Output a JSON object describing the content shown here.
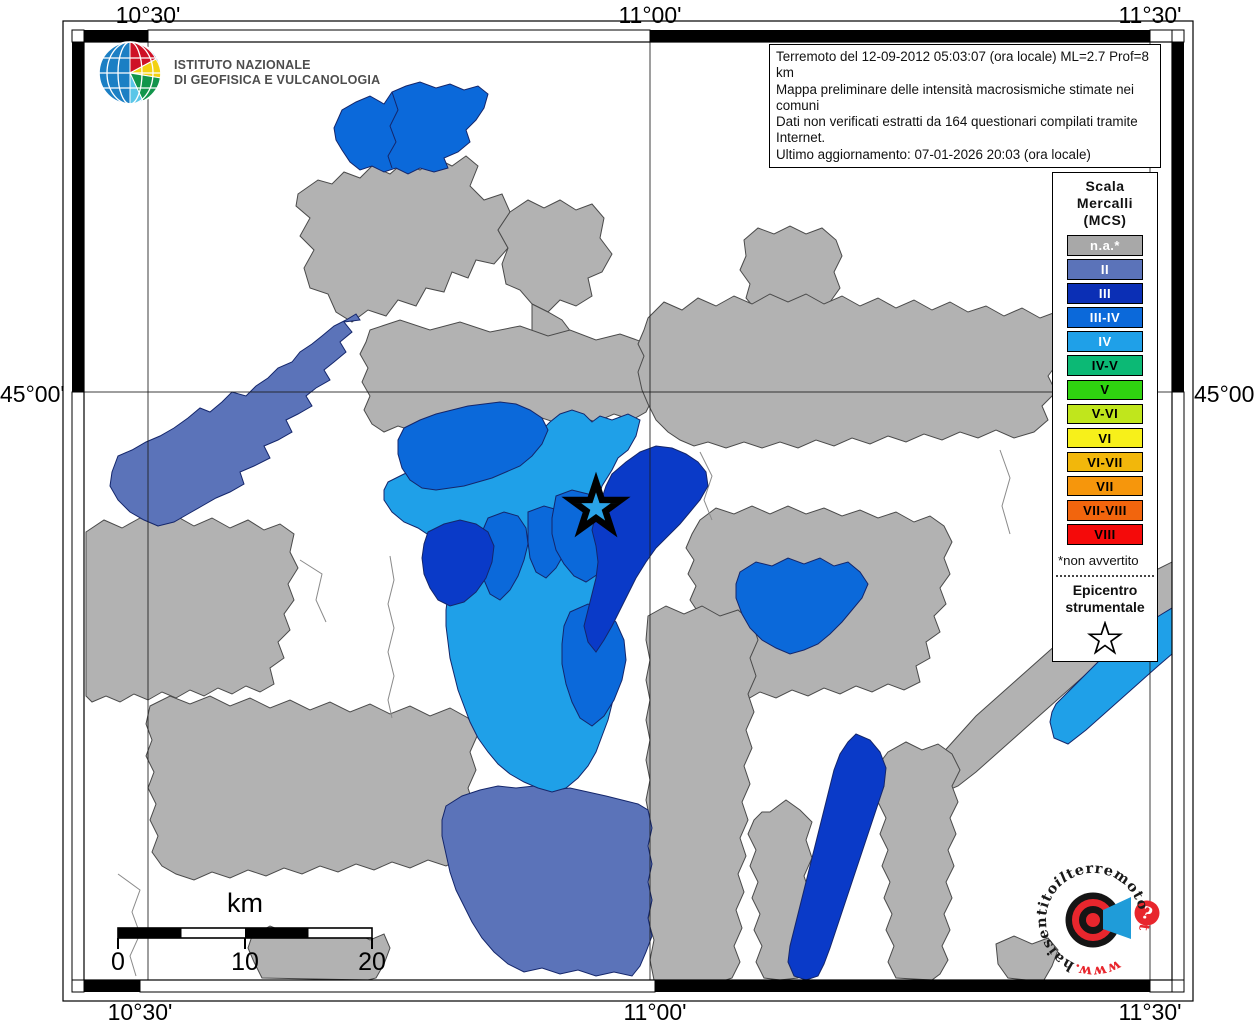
{
  "coordinates": {
    "top": [
      {
        "text": "10°30'"
      },
      {
        "text": "11°00'"
      },
      {
        "text": "11°30'"
      }
    ],
    "bottom": [
      {
        "text": "10°30'"
      },
      {
        "text": "11°00'"
      },
      {
        "text": "11°30'"
      }
    ],
    "left": "45°00'",
    "right": "45°00'"
  },
  "ingv": {
    "name_line1": "ISTITUTO NAZIONALE",
    "name_line2": "DI GEOFISICA E VULCANOLOGIA"
  },
  "info_box": {
    "lines": [
      "Terremoto del 12-09-2012 05:03:07 (ora locale) ML=2.7 Prof=8 km",
      "Mappa preliminare delle intensità macrosismiche stimate nei comuni",
      "Dati non verificati estratti da 164 questionari compilati tramite Internet.",
      "Ultimo aggiornamento: 07-01-2026 20:03 (ora locale)"
    ]
  },
  "legend": {
    "title_lines": [
      "Scala",
      "Mercalli",
      "(MCS)"
    ],
    "items": [
      {
        "label": "n.a.*",
        "color": "#A8A8A8",
        "text": "#ffffff"
      },
      {
        "label": "II",
        "color": "#5B73B9",
        "text": "#ffffff"
      },
      {
        "label": "III",
        "color": "#0B2FB5",
        "text": "#ffffff"
      },
      {
        "label": "III-IV",
        "color": "#0B69DA",
        "text": "#ffffff"
      },
      {
        "label": "IV",
        "color": "#1FA0E8",
        "text": "#ffffff"
      },
      {
        "label": "IV-V",
        "color": "#0CB975",
        "text": "#000000"
      },
      {
        "label": "V",
        "color": "#2FD310",
        "text": "#000000"
      },
      {
        "label": "V-VI",
        "color": "#C0E61C",
        "text": "#000000"
      },
      {
        "label": "VI",
        "color": "#F7F01A",
        "text": "#000000"
      },
      {
        "label": "VI-VII",
        "color": "#F2B70B",
        "text": "#000000"
      },
      {
        "label": "VII",
        "color": "#F6960C",
        "text": "#000000"
      },
      {
        "label": "VII-VIII",
        "color": "#F2650D",
        "text": "#000000"
      },
      {
        "label": "VIII",
        "color": "#F50A0A",
        "text": "#000000"
      }
    ],
    "footnote": "*non avvertito",
    "epicenter_label_lines": [
      "Epicentro",
      "strumentale"
    ]
  },
  "map_colors": {
    "na": "#B2B2B2",
    "II": "#5B73B9",
    "III": "#0A3AC8",
    "III4": "#0B69DA",
    "IV": "#1FA0E8",
    "bgray": "#4A4A4A",
    "bblue": "#14266B"
  },
  "scale_bar": {
    "unit": "km",
    "tick_labels": [
      "0",
      "10",
      "20"
    ]
  },
  "watermark": {
    "segments": [
      {
        "text": "www.",
        "color": "#E8262D",
        "italic": false
      },
      {
        "text": "haisentito",
        "color": "#1A1A1A",
        "italic": false
      },
      {
        "text": "il",
        "color": "#1A1A1A",
        "italic": true
      },
      {
        "text": "terremoto",
        "color": "#1A1A1A",
        "italic": false
      },
      {
        "text": ".it",
        "color": "#E8262D",
        "italic": false
      }
    ]
  }
}
